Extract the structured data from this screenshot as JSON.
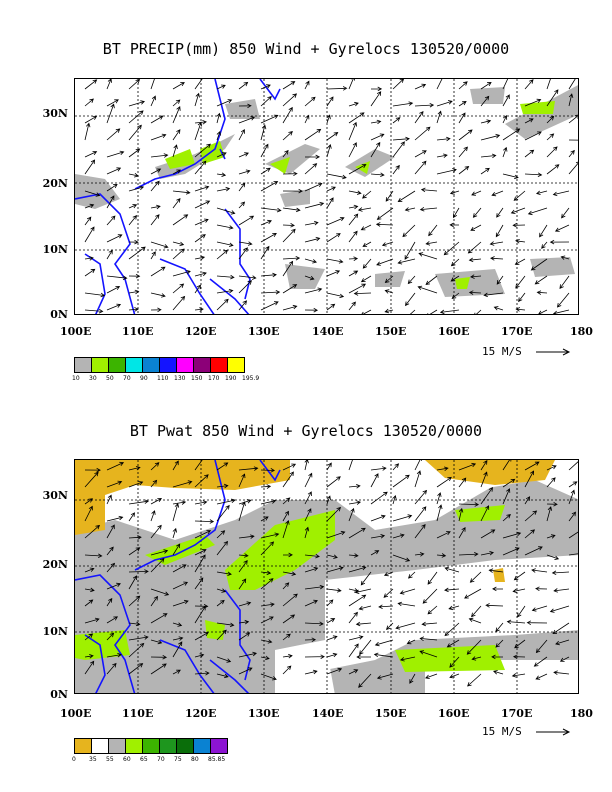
{
  "panels": [
    {
      "title": "BT PRECIP(mm) 850 Wind + Gyrelocs 130520/0000",
      "x_ticks": [
        "100E",
        "110E",
        "120E",
        "130E",
        "140E",
        "150E",
        "160E",
        "170E",
        "180"
      ],
      "y_ticks": [
        "0N",
        "10N",
        "20N",
        "30N"
      ],
      "reference_vector": "15 M/S",
      "colorbar": {
        "colors": [
          "#b4b4b4",
          "#a0f000",
          "#3cb400",
          "#00e6e6",
          "#0a82d2",
          "#1414ff",
          "#ff00ff",
          "#8c0078",
          "#ff0000",
          "#ffff00"
        ],
        "labels": [
          "10",
          "30",
          "50",
          "70",
          "90",
          "110",
          "130",
          "150",
          "170",
          "190",
          "195.9"
        ]
      }
    },
    {
      "title": "BT Pwat 850 Wind + Gyrelocs 130520/0000",
      "x_ticks": [
        "100E",
        "110E",
        "120E",
        "130E",
        "140E",
        "150E",
        "160E",
        "170E",
        "180"
      ],
      "y_ticks": [
        "0N",
        "10N",
        "20N",
        "30N"
      ],
      "reference_vector": "15 M/S",
      "colorbar": {
        "colors": [
          "#e6b41e",
          "#ffffff",
          "#b4b4b4",
          "#a0f000",
          "#3cb400",
          "#1e961e",
          "#0a6e0a",
          "#0a82d2",
          "#8c14d2"
        ],
        "labels": [
          "0",
          "35",
          "55",
          "60",
          "65",
          "70",
          "75",
          "80",
          "85.85"
        ]
      }
    }
  ],
  "chart_data": [
    {
      "type": "heatmap",
      "title": "BT PRECIP(mm) 850 Wind + Gyrelocs 130520/0000",
      "xlim": [
        100,
        180
      ],
      "ylim": [
        0,
        35
      ],
      "x_ticks": [
        "100E",
        "110E",
        "120E",
        "130E",
        "140E",
        "150E",
        "160E",
        "170E",
        "180"
      ],
      "y_ticks": [
        "0N",
        "10N",
        "20N",
        "30N"
      ]
    },
    {
      "type": "heatmap",
      "title": "BT Pwat 850 Wind + Gyrelocs 130520/0000",
      "xlim": [
        100,
        180
      ],
      "ylim": [
        0,
        35
      ],
      "x_ticks": [
        "100E",
        "110E",
        "120E",
        "130E",
        "140E",
        "150E",
        "160E",
        "170E",
        "180"
      ],
      "y_ticks": [
        "0N",
        "10N",
        "20N",
        "30N"
      ]
    }
  ]
}
